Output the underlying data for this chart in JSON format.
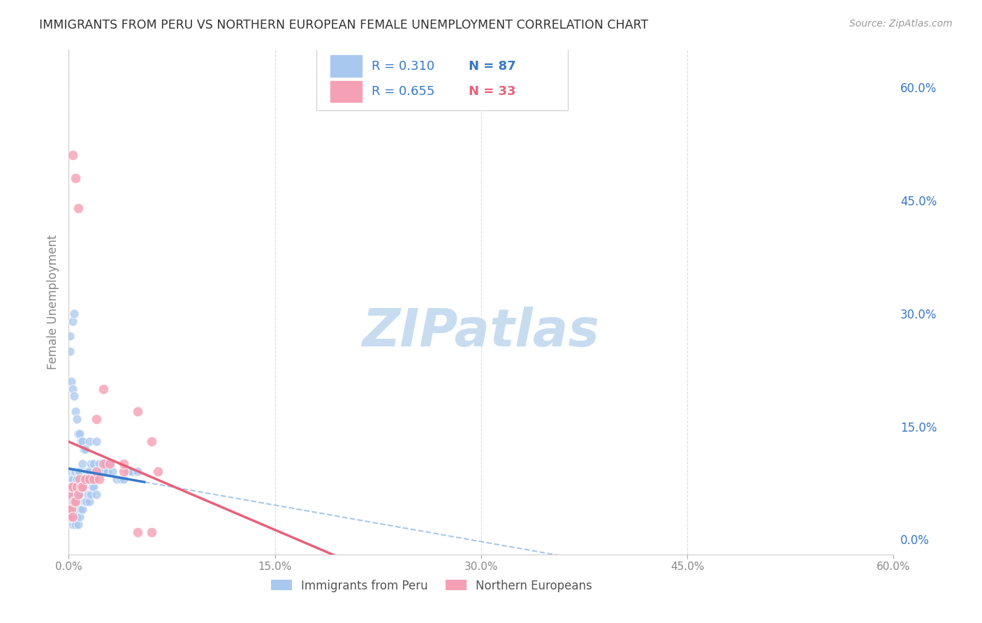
{
  "title": "IMMIGRANTS FROM PERU VS NORTHERN EUROPEAN FEMALE UNEMPLOYMENT CORRELATION CHART",
  "source": "Source: ZipAtlas.com",
  "ylabel": "Female Unemployment",
  "xlim": [
    0.0,
    0.6
  ],
  "ylim": [
    -0.02,
    0.65
  ],
  "series1_label": "Immigrants from Peru",
  "series1_R": "0.310",
  "series1_N": "87",
  "series1_color": "#A8C8F0",
  "series2_label": "Northern Europeans",
  "series2_R": "0.655",
  "series2_N": "33",
  "series2_color": "#F5A0B5",
  "trend1_solid_color": "#3878C8",
  "trend1_dashed_color": "#A0C0E8",
  "trend2_color": "#E8607A",
  "watermark": "ZIPatlas",
  "watermark_color": "#C8DCF0",
  "background_color": "#FFFFFF",
  "grid_color": "#D8D8D8",
  "legend_text_color": "#3878C8",
  "tick_color_right": "#3878C8",
  "title_color": "#333333",
  "s1_x": [
    0.0005,
    0.001,
    0.001,
    0.001,
    0.0015,
    0.002,
    0.002,
    0.002,
    0.002,
    0.003,
    0.003,
    0.003,
    0.003,
    0.004,
    0.004,
    0.004,
    0.004,
    0.005,
    0.005,
    0.005,
    0.005,
    0.005,
    0.006,
    0.006,
    0.006,
    0.007,
    0.007,
    0.007,
    0.007,
    0.008,
    0.008,
    0.008,
    0.009,
    0.009,
    0.01,
    0.01,
    0.01,
    0.011,
    0.011,
    0.012,
    0.012,
    0.013,
    0.013,
    0.014,
    0.014,
    0.015,
    0.015,
    0.016,
    0.016,
    0.017,
    0.018,
    0.018,
    0.019,
    0.02,
    0.02,
    0.021,
    0.022,
    0.023,
    0.024,
    0.025,
    0.026,
    0.028,
    0.03,
    0.032,
    0.035,
    0.038,
    0.04,
    0.043,
    0.046,
    0.05,
    0.001,
    0.001,
    0.002,
    0.003,
    0.003,
    0.004,
    0.005,
    0.006,
    0.007,
    0.008,
    0.009,
    0.01,
    0.011,
    0.004,
    0.012,
    0.015,
    0.02
  ],
  "s1_y": [
    0.05,
    0.03,
    0.055,
    0.08,
    0.04,
    0.03,
    0.05,
    0.07,
    0.09,
    0.02,
    0.04,
    0.06,
    0.08,
    0.03,
    0.05,
    0.07,
    0.09,
    0.02,
    0.04,
    0.055,
    0.07,
    0.09,
    0.03,
    0.05,
    0.08,
    0.02,
    0.04,
    0.06,
    0.09,
    0.03,
    0.06,
    0.09,
    0.04,
    0.07,
    0.04,
    0.07,
    0.1,
    0.05,
    0.08,
    0.05,
    0.08,
    0.05,
    0.09,
    0.06,
    0.09,
    0.05,
    0.09,
    0.06,
    0.1,
    0.07,
    0.07,
    0.1,
    0.08,
    0.06,
    0.09,
    0.09,
    0.1,
    0.09,
    0.09,
    0.09,
    0.1,
    0.09,
    0.1,
    0.09,
    0.08,
    0.08,
    0.08,
    0.09,
    0.09,
    0.09,
    0.27,
    0.25,
    0.21,
    0.29,
    0.2,
    0.19,
    0.17,
    0.16,
    0.14,
    0.14,
    0.13,
    0.13,
    0.12,
    0.3,
    0.12,
    0.13,
    0.13
  ],
  "s2_x": [
    0.0005,
    0.001,
    0.001,
    0.002,
    0.002,
    0.003,
    0.003,
    0.004,
    0.005,
    0.006,
    0.007,
    0.008,
    0.009,
    0.01,
    0.012,
    0.015,
    0.018,
    0.02,
    0.022,
    0.025,
    0.03,
    0.04,
    0.05,
    0.06,
    0.003,
    0.005,
    0.007,
    0.02,
    0.025,
    0.04,
    0.05,
    0.06,
    0.065
  ],
  "s2_y": [
    0.04,
    0.03,
    0.06,
    0.04,
    0.07,
    0.03,
    0.07,
    0.05,
    0.05,
    0.07,
    0.06,
    0.08,
    0.07,
    0.07,
    0.08,
    0.08,
    0.08,
    0.09,
    0.08,
    0.1,
    0.1,
    0.09,
    0.17,
    0.13,
    0.51,
    0.48,
    0.44,
    0.16,
    0.2,
    0.1,
    0.01,
    0.01,
    0.09
  ]
}
